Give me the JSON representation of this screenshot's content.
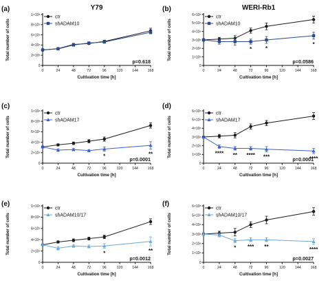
{
  "chart_data": [
    {
      "type": "line",
      "panel_label": "(a)",
      "title": "Y79",
      "xlabel": "Cultivation time [h]",
      "ylabel": "Total number of cells",
      "x": [
        0,
        24,
        48,
        72,
        96,
        168
      ],
      "xticks": [
        "0",
        "24",
        "48",
        "72",
        "96",
        "120",
        "144",
        "168"
      ],
      "yticks": [
        "1×10⁶",
        "8×10⁵",
        "6×10⁵",
        "4×10⁵",
        "2×10⁵",
        "0"
      ],
      "ylim": [
        0,
        1000000
      ],
      "xlim": [
        0,
        168
      ],
      "legend_position": "top-left",
      "pvalue": "p=0.618",
      "series": [
        {
          "name": "ctr",
          "color": "#1a1a1a",
          "marker": "circle",
          "values": [
            300000,
            330000,
            410000,
            430000,
            470000,
            680000
          ],
          "errors": [
            15000,
            20000,
            20000,
            20000,
            25000,
            50000
          ]
        },
        {
          "name": "shADAM10",
          "color": "#2a4a8a",
          "marker": "square",
          "values": [
            305000,
            325000,
            400000,
            440000,
            460000,
            650000
          ],
          "errors": [
            15000,
            15000,
            20000,
            20000,
            25000,
            30000
          ]
        }
      ],
      "significance": []
    },
    {
      "type": "line",
      "panel_label": "(b)",
      "title": "WERI-Rb1",
      "xlabel": "Cultivation time [h]",
      "ylabel": "Total number of cells",
      "x": [
        0,
        24,
        48,
        72,
        96,
        168
      ],
      "xticks": [
        "0",
        "24",
        "48",
        "72",
        "96",
        "120",
        "144",
        "168"
      ],
      "yticks": [
        "6×10⁶",
        "5×10⁶",
        "4×10⁶",
        "3×10⁶",
        "2×10⁶",
        "1×10⁶",
        "0"
      ],
      "ylim": [
        0,
        6000000
      ],
      "xlim": [
        0,
        168
      ],
      "legend_position": "top-left",
      "pvalue": "p=0.0586",
      "series": [
        {
          "name": "ctr",
          "color": "#1a1a1a",
          "marker": "circle",
          "values": [
            3000000,
            3100000,
            3200000,
            4100000,
            4600000,
            5400000
          ],
          "errors": [
            150000,
            200000,
            300000,
            300000,
            400000,
            400000
          ]
        },
        {
          "name": "shADAM10",
          "color": "#2a4a8a",
          "marker": "square",
          "values": [
            3000000,
            2800000,
            2800000,
            2800000,
            3000000,
            3500000
          ],
          "errors": [
            100000,
            300000,
            400000,
            300000,
            400000,
            400000
          ]
        }
      ],
      "significance": [
        {
          "x": 72,
          "label": "*"
        },
        {
          "x": 96,
          "label": "*"
        },
        {
          "x": 168,
          "label": "*"
        }
      ]
    },
    {
      "type": "line",
      "panel_label": "(c)",
      "title": "",
      "xlabel": "Cultivation time [h]",
      "ylabel": "Total number of cells",
      "x": [
        0,
        24,
        48,
        72,
        96,
        168
      ],
      "xticks": [
        "0",
        "24",
        "48",
        "72",
        "96",
        "120",
        "144",
        "168"
      ],
      "yticks": [
        "1×10⁶",
        "8×10⁵",
        "6×10⁵",
        "4×10⁵",
        "2×10⁵",
        "0"
      ],
      "ylim": [
        0,
        1000000
      ],
      "xlim": [
        0,
        168
      ],
      "legend_position": "top-left",
      "pvalue": "p=0.0001",
      "series": [
        {
          "name": "ctr",
          "color": "#1a1a1a",
          "marker": "circle",
          "values": [
            310000,
            350000,
            380000,
            420000,
            460000,
            720000
          ],
          "errors": [
            15000,
            20000,
            25000,
            30000,
            40000,
            50000
          ]
        },
        {
          "name": "shADAM17",
          "color": "#3a5fd0",
          "marker": "triangle",
          "values": [
            310000,
            250000,
            260000,
            240000,
            270000,
            340000
          ],
          "errors": [
            15000,
            25000,
            20000,
            20000,
            40000,
            70000
          ]
        }
      ],
      "significance": [
        {
          "x": 96,
          "label": "*"
        },
        {
          "x": 168,
          "label": "**"
        }
      ]
    },
    {
      "type": "line",
      "panel_label": "(d)",
      "title": "",
      "xlabel": "Cultivation time [h]",
      "ylabel": "Total number of cells",
      "x": [
        0,
        24,
        48,
        72,
        96,
        168
      ],
      "xticks": [
        "0",
        "24",
        "48",
        "72",
        "96",
        "120",
        "144",
        "168"
      ],
      "yticks": [
        "6×10⁶",
        "5×10⁶",
        "4×10⁶",
        "3×10⁶",
        "2×10⁶",
        "1×10⁶",
        "0"
      ],
      "ylim": [
        0,
        6000000
      ],
      "xlim": [
        0,
        168
      ],
      "legend_position": "top-left",
      "pvalue": "p=0.0001",
      "series": [
        {
          "name": "ctr",
          "color": "#1a1a1a",
          "marker": "circle",
          "values": [
            3000000,
            3100000,
            3200000,
            4200000,
            4600000,
            5400000
          ],
          "errors": [
            100000,
            200000,
            300000,
            300000,
            300000,
            400000
          ]
        },
        {
          "name": "shADAM17",
          "color": "#3a5fd0",
          "marker": "triangle",
          "values": [
            3000000,
            1900000,
            1700000,
            1700000,
            1600000,
            1400000
          ],
          "errors": [
            100000,
            200000,
            200000,
            200000,
            300000,
            300000
          ]
        }
      ],
      "significance": [
        {
          "x": 24,
          "label": "****"
        },
        {
          "x": 48,
          "label": "**"
        },
        {
          "x": 72,
          "label": "****"
        },
        {
          "x": 96,
          "label": "***"
        },
        {
          "x": 168,
          "label": "****"
        }
      ]
    },
    {
      "type": "line",
      "panel_label": "(e)",
      "title": "",
      "xlabel": "Cultivation time [h]",
      "ylabel": "Total number of cells",
      "x": [
        0,
        24,
        48,
        72,
        96,
        168
      ],
      "xticks": [
        "0",
        "24",
        "48",
        "72",
        "96",
        "120",
        "144",
        "168"
      ],
      "yticks": [
        "1×10⁶",
        "8×10⁵",
        "6×10⁵",
        "4×10⁵",
        "2×10⁵",
        "0"
      ],
      "ylim": [
        0,
        1000000
      ],
      "xlim": [
        0,
        168
      ],
      "legend_position": "top-left",
      "pvalue": "p=0.0012",
      "series": [
        {
          "name": "ctr",
          "color": "#1a1a1a",
          "marker": "circle",
          "values": [
            310000,
            360000,
            390000,
            420000,
            450000,
            720000
          ],
          "errors": [
            15000,
            20000,
            25000,
            25000,
            30000,
            50000
          ]
        },
        {
          "name": "shADAM10/17",
          "color": "#6aa8dc",
          "marker": "triangle",
          "values": [
            310000,
            250000,
            290000,
            280000,
            290000,
            370000
          ],
          "errors": [
            15000,
            30000,
            25000,
            25000,
            40000,
            80000
          ]
        }
      ],
      "significance": [
        {
          "x": 96,
          "label": "*"
        },
        {
          "x": 168,
          "label": "**"
        }
      ]
    },
    {
      "type": "line",
      "panel_label": "(f)",
      "title": "",
      "xlabel": "Cultivation time [h]",
      "ylabel": "Total number of cells",
      "x": [
        0,
        24,
        48,
        72,
        96,
        168
      ],
      "xticks": [
        "0",
        "24",
        "48",
        "72",
        "96",
        "120",
        "144",
        "168"
      ],
      "yticks": [
        "6×10⁶",
        "5×10⁶",
        "4×10⁶",
        "3×10⁶",
        "2×10⁶",
        "1×10⁶",
        "0"
      ],
      "ylim": [
        0,
        6000000
      ],
      "xlim": [
        0,
        168
      ],
      "legend_position": "top-left",
      "pvalue": "p=0.0027",
      "series": [
        {
          "name": "ctr",
          "color": "#1a1a1a",
          "marker": "circle",
          "values": [
            3000000,
            3100000,
            3200000,
            4000000,
            4500000,
            5400000
          ],
          "errors": [
            150000,
            200000,
            400000,
            300000,
            400000,
            400000
          ]
        },
        {
          "name": "shADAM10/17",
          "color": "#6aa8dc",
          "marker": "triangle",
          "values": [
            3000000,
            2900000,
            2300000,
            2400000,
            2400000,
            2200000
          ],
          "errors": [
            150000,
            200000,
            200000,
            200000,
            200000,
            300000
          ]
        }
      ],
      "significance": [
        {
          "x": 48,
          "label": "*"
        },
        {
          "x": 72,
          "label": "***"
        },
        {
          "x": 96,
          "label": "**"
        },
        {
          "x": 168,
          "label": "****"
        }
      ]
    }
  ]
}
